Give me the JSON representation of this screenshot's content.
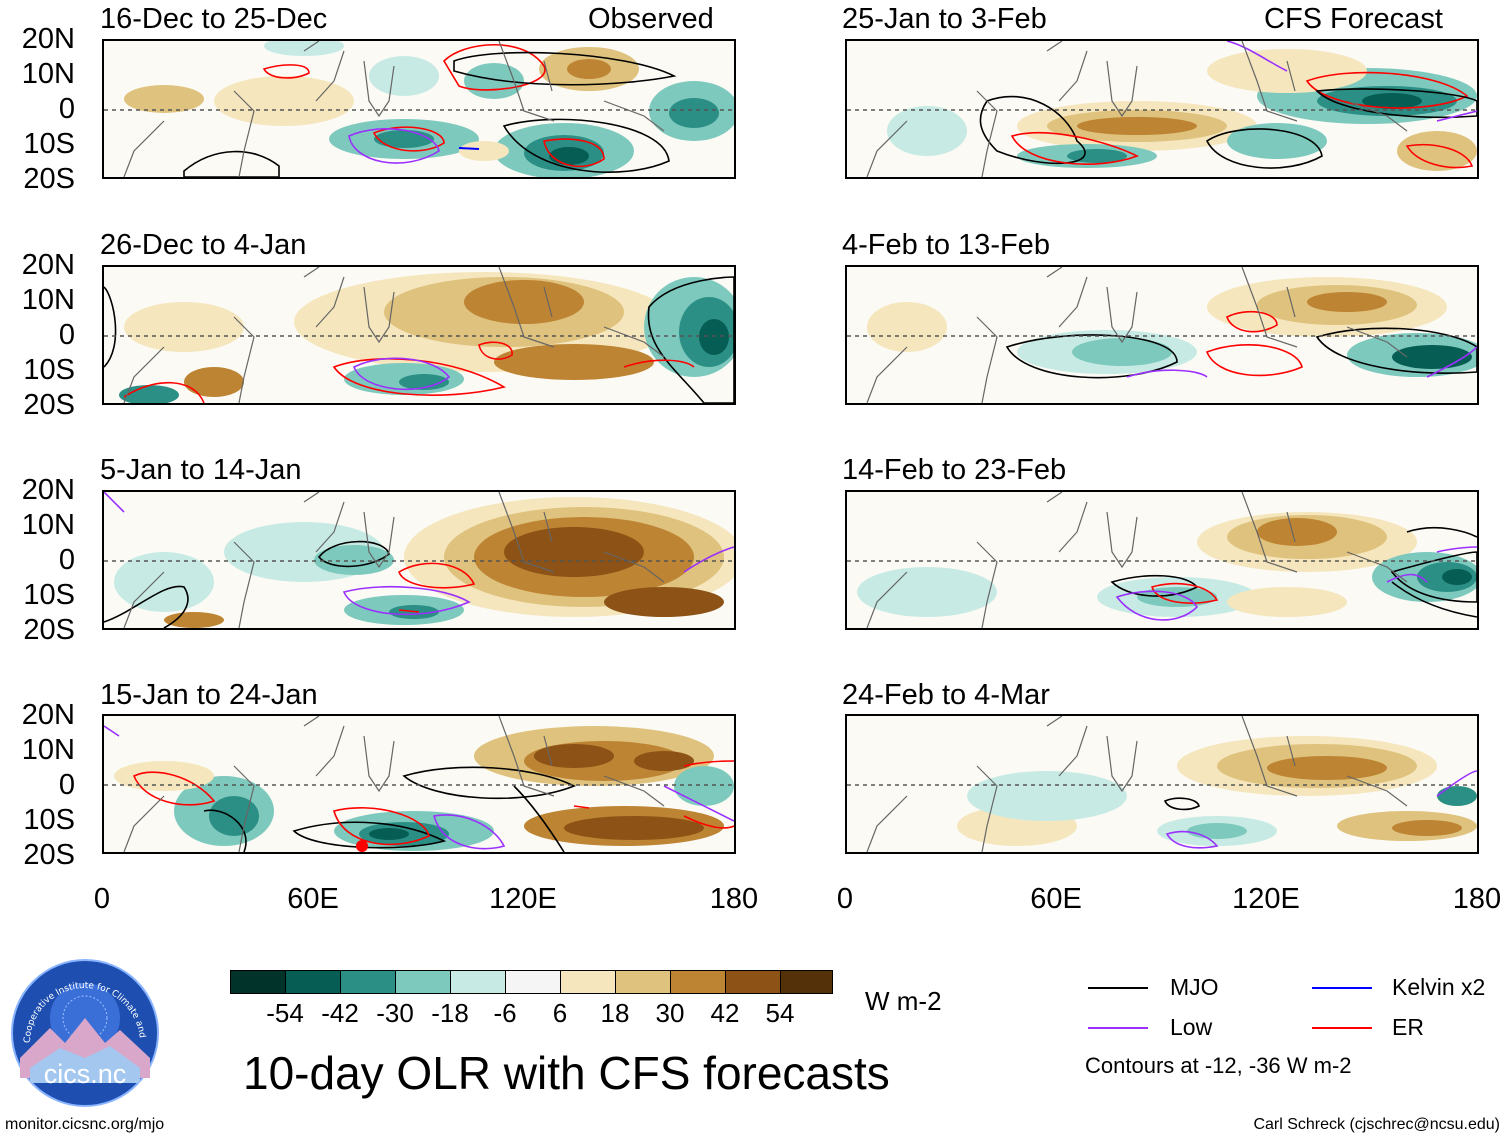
{
  "panels": [
    {
      "id": "p1",
      "title": "16-Dec to 25-Dec",
      "tag": "Observed"
    },
    {
      "id": "p2",
      "title": "25-Jan to 3-Feb",
      "tag": "CFS Forecast"
    },
    {
      "id": "p3",
      "title": "26-Dec to 4-Jan",
      "tag": ""
    },
    {
      "id": "p4",
      "title": "4-Feb to 13-Feb",
      "tag": ""
    },
    {
      "id": "p5",
      "title": "5-Jan to 14-Jan",
      "tag": ""
    },
    {
      "id": "p6",
      "title": "14-Feb to 23-Feb",
      "tag": ""
    },
    {
      "id": "p7",
      "title": "15-Jan to 24-Jan",
      "tag": ""
    },
    {
      "id": "p8",
      "title": "24-Feb to 4-Mar",
      "tag": ""
    }
  ],
  "lat_labels": [
    "20N",
    "10N",
    "0",
    "10S",
    "20S"
  ],
  "lon_labels": [
    "0",
    "60E",
    "120E",
    "180"
  ],
  "colorbar": {
    "ticks": [
      "-54",
      "-42",
      "-30",
      "-18",
      "-6",
      "6",
      "18",
      "30",
      "42",
      "54"
    ],
    "units": "W m-2",
    "colors": [
      "#01332b",
      "#065d54",
      "#2c8f86",
      "#7ec9bd",
      "#c7ebe4",
      "#f5f5f5",
      "#f5e6bd",
      "#dfc27d",
      "#bd8433",
      "#8c5216",
      "#553109"
    ]
  },
  "legend": {
    "mjo": "MJO",
    "kelvin": "Kelvin x2",
    "low": "Low",
    "er": "ER",
    "note": "Contours at -12, -36 W m-2",
    "colors": {
      "mjo": "#000000",
      "kelvin": "#0000ff",
      "low": "#9b30ff",
      "er": "#ff0000"
    }
  },
  "main_title": "10-day OLR with CFS forecasts",
  "logo_text": "cics.nc",
  "logo_ring_text": "Cooperative Institute for Climate and Satellites",
  "footer_left": "monitor.cicsnc.org/mjo",
  "footer_right": "Carl Schreck (cjschrec@ncsu.edu)"
}
